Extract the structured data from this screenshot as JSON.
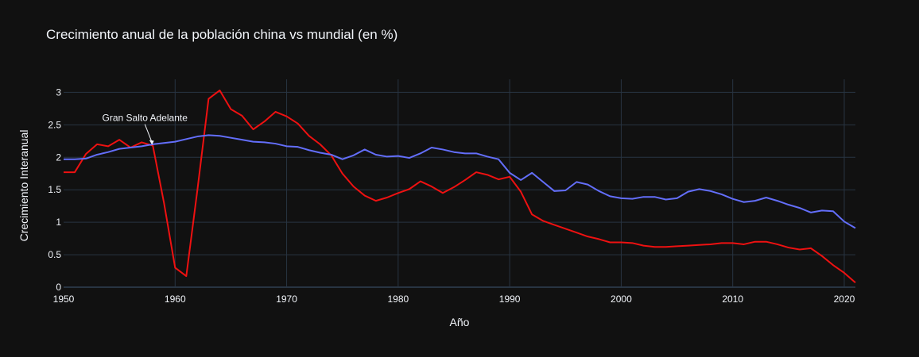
{
  "chart_data": {
    "type": "line",
    "title": "Crecimiento anual de la población china vs mundial (en %)",
    "xlabel": "Año",
    "ylabel": "Crecimiento Interanual",
    "xlim": [
      1950,
      2021
    ],
    "ylim": [
      0,
      3.2
    ],
    "xticks": [
      1950,
      1960,
      1970,
      1980,
      1990,
      2000,
      2010,
      2020
    ],
    "yticks": [
      0,
      0.5,
      1,
      1.5,
      2,
      2.5,
      3
    ],
    "ytick_labels": [
      "0",
      "0.5",
      "1",
      "1.5",
      "2",
      "2.5",
      "3"
    ],
    "grid": true,
    "legend": "none",
    "annotation": {
      "text": "Gran Salto Adelante",
      "x": 1958,
      "y": 2.18
    },
    "colors": {
      "china": "#ee1111",
      "mundial": "#636efa",
      "background": "#111111",
      "grid": "#283442"
    },
    "x": [
      1950,
      1951,
      1952,
      1953,
      1954,
      1955,
      1956,
      1957,
      1958,
      1959,
      1960,
      1961,
      1962,
      1963,
      1964,
      1965,
      1966,
      1967,
      1968,
      1969,
      1970,
      1971,
      1972,
      1973,
      1974,
      1975,
      1976,
      1977,
      1978,
      1979,
      1980,
      1981,
      1982,
      1983,
      1984,
      1985,
      1986,
      1987,
      1988,
      1989,
      1990,
      1991,
      1992,
      1993,
      1994,
      1995,
      1996,
      1997,
      1998,
      1999,
      2000,
      2001,
      2002,
      2003,
      2004,
      2005,
      2006,
      2007,
      2008,
      2009,
      2010,
      2011,
      2012,
      2013,
      2014,
      2015,
      2016,
      2017,
      2018,
      2019,
      2020,
      2021
    ],
    "series": [
      {
        "key": "china",
        "values": [
          1.77,
          1.77,
          2.05,
          2.2,
          2.17,
          2.27,
          2.15,
          2.23,
          2.18,
          1.3,
          0.3,
          0.17,
          1.5,
          2.9,
          3.03,
          2.74,
          2.64,
          2.43,
          2.55,
          2.7,
          2.63,
          2.52,
          2.33,
          2.2,
          2.03,
          1.75,
          1.55,
          1.41,
          1.33,
          1.38,
          1.45,
          1.51,
          1.63,
          1.55,
          1.45,
          1.54,
          1.65,
          1.77,
          1.73,
          1.66,
          1.7,
          1.47,
          1.12,
          1.02,
          0.96,
          0.9,
          0.84,
          0.78,
          0.74,
          0.69,
          0.69,
          0.68,
          0.64,
          0.62,
          0.62,
          0.63,
          0.64,
          0.65,
          0.66,
          0.68,
          0.68,
          0.66,
          0.7,
          0.7,
          0.66,
          0.61,
          0.58,
          0.6,
          0.48,
          0.34,
          0.22,
          0.07
        ]
      },
      {
        "key": "mundial",
        "values": [
          1.97,
          1.97,
          1.98,
          2.04,
          2.08,
          2.13,
          2.15,
          2.17,
          2.2,
          2.22,
          2.24,
          2.28,
          2.32,
          2.34,
          2.33,
          2.3,
          2.27,
          2.24,
          2.23,
          2.21,
          2.17,
          2.16,
          2.11,
          2.07,
          2.04,
          1.97,
          2.03,
          2.12,
          2.04,
          2.01,
          2.02,
          1.99,
          2.06,
          2.15,
          2.12,
          2.08,
          2.06,
          2.06,
          2.01,
          1.97,
          1.76,
          1.65,
          1.76,
          1.62,
          1.48,
          1.49,
          1.62,
          1.58,
          1.48,
          1.4,
          1.37,
          1.36,
          1.39,
          1.39,
          1.35,
          1.37,
          1.47,
          1.51,
          1.48,
          1.43,
          1.36,
          1.31,
          1.33,
          1.38,
          1.33,
          1.27,
          1.22,
          1.15,
          1.18,
          1.17,
          1.01,
          0.91
        ]
      }
    ]
  }
}
